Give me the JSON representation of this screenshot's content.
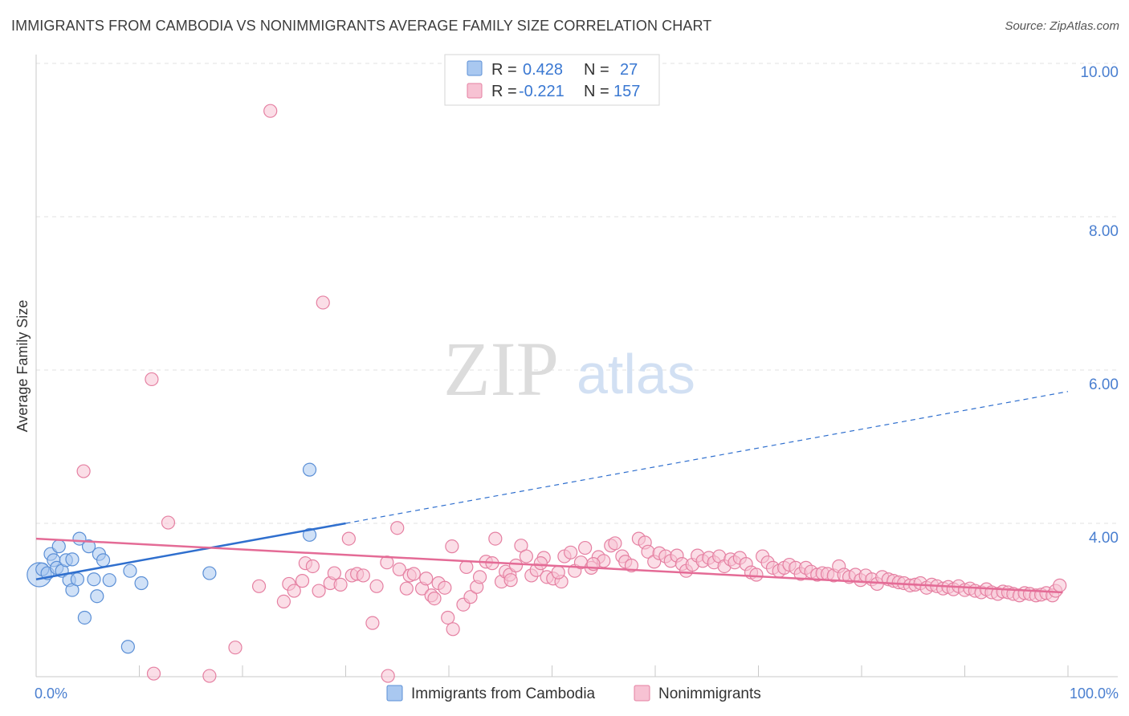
{
  "header": {
    "title": "IMMIGRANTS FROM CAMBODIA VS NONIMMIGRANTS AVERAGE FAMILY SIZE CORRELATION CHART",
    "source": "Source: ZipAtlas.com"
  },
  "watermark": {
    "zip": "ZIP",
    "atlas": "atlas"
  },
  "legend": {
    "rows": [
      {
        "r_label": "R =",
        "r_value": "0.428",
        "n_label": "N =",
        "n_value": "27",
        "color": "#a9c8f0",
        "stroke": "#5b8fd6"
      },
      {
        "r_label": "R =",
        "r_value": "-0.221",
        "n_label": "N =",
        "n_value": "157",
        "color": "#f7c2d3",
        "stroke": "#e580a2"
      }
    ]
  },
  "bottom_legend": {
    "items": [
      {
        "label": "Immigrants from Cambodia",
        "color": "#a9c8f0",
        "stroke": "#5b8fd6"
      },
      {
        "label": "Nonimmigrants",
        "color": "#f7c2d3",
        "stroke": "#e580a2"
      }
    ]
  },
  "chart_data": {
    "type": "scatter",
    "title": "IMMIGRANTS FROM CAMBODIA VS NONIMMIGRANTS AVERAGE FAMILY SIZE CORRELATION CHART",
    "xlabel": "",
    "ylabel": "Average Family Size",
    "xlim": [
      0,
      100
    ],
    "ylim": [
      1.9,
      10.2
    ],
    "x_tick_labels": [
      "0.0%",
      "100.0%"
    ],
    "y_ticks": [
      4,
      6,
      8,
      10
    ],
    "y_tick_labels": [
      "4.00",
      "6.00",
      "8.00",
      "10.00"
    ],
    "grid": true,
    "series": [
      {
        "name": "Immigrants from Cambodia",
        "color": "#a9c8f0",
        "stroke": "#5b8fd6",
        "points": [
          {
            "x": 0.3,
            "y": 3.33,
            "big": true
          },
          {
            "x": 0.6,
            "y": 3.4
          },
          {
            "x": 1.1,
            "y": 3.35
          },
          {
            "x": 1.4,
            "y": 3.6
          },
          {
            "x": 1.7,
            "y": 3.52
          },
          {
            "x": 2.0,
            "y": 3.42
          },
          {
            "x": 2.2,
            "y": 3.7
          },
          {
            "x": 2.5,
            "y": 3.38
          },
          {
            "x": 2.9,
            "y": 3.52
          },
          {
            "x": 3.2,
            "y": 3.26
          },
          {
            "x": 3.5,
            "y": 3.53
          },
          {
            "x": 3.5,
            "y": 3.13
          },
          {
            "x": 4.0,
            "y": 3.27
          },
          {
            "x": 4.2,
            "y": 3.8
          },
          {
            "x": 4.7,
            "y": 2.77
          },
          {
            "x": 5.1,
            "y": 3.7
          },
          {
            "x": 5.6,
            "y": 3.27
          },
          {
            "x": 5.9,
            "y": 3.05
          },
          {
            "x": 6.1,
            "y": 3.6
          },
          {
            "x": 6.5,
            "y": 3.52
          },
          {
            "x": 7.1,
            "y": 3.26
          },
          {
            "x": 8.9,
            "y": 2.39
          },
          {
            "x": 9.1,
            "y": 3.38
          },
          {
            "x": 10.2,
            "y": 3.22
          },
          {
            "x": 16.8,
            "y": 3.35
          },
          {
            "x": 26.5,
            "y": 4.7
          },
          {
            "x": 26.5,
            "y": 3.85
          }
        ],
        "trend": {
          "x0": 0,
          "y0": 3.27,
          "x1": 30,
          "y1": 4.0,
          "dash_to_x": 100,
          "dash_to_y": 5.72,
          "color": "#2f6fce"
        }
      },
      {
        "name": "Nonimmigrants",
        "color": "#f7c2d3",
        "stroke": "#e580a2",
        "points": [
          {
            "x": 11.2,
            "y": 5.88
          },
          {
            "x": 4.6,
            "y": 4.68
          },
          {
            "x": 12.8,
            "y": 4.01
          },
          {
            "x": 22.7,
            "y": 9.38
          },
          {
            "x": 27.8,
            "y": 6.88
          },
          {
            "x": 11.4,
            "y": 2.04
          },
          {
            "x": 16.8,
            "y": 2.01
          },
          {
            "x": 19.3,
            "y": 2.38
          },
          {
            "x": 21.6,
            "y": 3.18
          },
          {
            "x": 24.0,
            "y": 2.98
          },
          {
            "x": 24.5,
            "y": 3.21
          },
          {
            "x": 25.0,
            "y": 3.12
          },
          {
            "x": 25.8,
            "y": 3.25
          },
          {
            "x": 26.1,
            "y": 3.48
          },
          {
            "x": 26.8,
            "y": 3.44
          },
          {
            "x": 27.4,
            "y": 3.12
          },
          {
            "x": 28.5,
            "y": 3.22
          },
          {
            "x": 28.9,
            "y": 3.35
          },
          {
            "x": 29.5,
            "y": 3.2
          },
          {
            "x": 30.3,
            "y": 3.8
          },
          {
            "x": 30.6,
            "y": 3.32
          },
          {
            "x": 31.1,
            "y": 3.34
          },
          {
            "x": 31.7,
            "y": 3.32
          },
          {
            "x": 32.6,
            "y": 2.7
          },
          {
            "x": 33.0,
            "y": 3.18
          },
          {
            "x": 34.0,
            "y": 3.49
          },
          {
            "x": 34.1,
            "y": 2.01
          },
          {
            "x": 35.0,
            "y": 3.94
          },
          {
            "x": 35.2,
            "y": 3.4
          },
          {
            "x": 35.9,
            "y": 3.15
          },
          {
            "x": 36.2,
            "y": 3.32
          },
          {
            "x": 36.6,
            "y": 3.34
          },
          {
            "x": 37.4,
            "y": 3.15
          },
          {
            "x": 38.3,
            "y": 3.06
          },
          {
            "x": 38.6,
            "y": 3.02
          },
          {
            "x": 39.0,
            "y": 3.22
          },
          {
            "x": 39.6,
            "y": 3.16
          },
          {
            "x": 39.9,
            "y": 2.77
          },
          {
            "x": 40.3,
            "y": 3.7
          },
          {
            "x": 40.4,
            "y": 2.62
          },
          {
            "x": 41.4,
            "y": 2.94
          },
          {
            "x": 41.7,
            "y": 3.43
          },
          {
            "x": 42.1,
            "y": 3.04
          },
          {
            "x": 42.7,
            "y": 3.17
          },
          {
            "x": 43.6,
            "y": 3.5
          },
          {
            "x": 44.2,
            "y": 3.48
          },
          {
            "x": 44.5,
            "y": 3.8
          },
          {
            "x": 45.1,
            "y": 3.24
          },
          {
            "x": 45.5,
            "y": 3.37
          },
          {
            "x": 45.9,
            "y": 3.33
          },
          {
            "x": 46.5,
            "y": 3.45
          },
          {
            "x": 47.0,
            "y": 3.71
          },
          {
            "x": 47.5,
            "y": 3.57
          },
          {
            "x": 48.0,
            "y": 3.32
          },
          {
            "x": 48.5,
            "y": 3.39
          },
          {
            "x": 49.2,
            "y": 3.55
          },
          {
            "x": 49.5,
            "y": 3.3
          },
          {
            "x": 50.1,
            "y": 3.28
          },
          {
            "x": 50.9,
            "y": 3.24
          },
          {
            "x": 51.2,
            "y": 3.57
          },
          {
            "x": 51.8,
            "y": 3.62
          },
          {
            "x": 52.2,
            "y": 3.38
          },
          {
            "x": 52.8,
            "y": 3.49
          },
          {
            "x": 53.2,
            "y": 3.68
          },
          {
            "x": 53.8,
            "y": 3.42
          },
          {
            "x": 54.5,
            "y": 3.56
          },
          {
            "x": 55.0,
            "y": 3.51
          },
          {
            "x": 55.7,
            "y": 3.71
          },
          {
            "x": 56.1,
            "y": 3.74
          },
          {
            "x": 56.8,
            "y": 3.57
          },
          {
            "x": 57.1,
            "y": 3.5
          },
          {
            "x": 57.7,
            "y": 3.45
          },
          {
            "x": 58.4,
            "y": 3.8
          },
          {
            "x": 59.0,
            "y": 3.75
          },
          {
            "x": 59.3,
            "y": 3.63
          },
          {
            "x": 59.9,
            "y": 3.5
          },
          {
            "x": 60.4,
            "y": 3.61
          },
          {
            "x": 61.0,
            "y": 3.57
          },
          {
            "x": 61.5,
            "y": 3.51
          },
          {
            "x": 62.1,
            "y": 3.58
          },
          {
            "x": 62.6,
            "y": 3.47
          },
          {
            "x": 63.0,
            "y": 3.38
          },
          {
            "x": 63.6,
            "y": 3.46
          },
          {
            "x": 64.1,
            "y": 3.58
          },
          {
            "x": 64.6,
            "y": 3.51
          },
          {
            "x": 65.2,
            "y": 3.55
          },
          {
            "x": 65.7,
            "y": 3.49
          },
          {
            "x": 66.2,
            "y": 3.57
          },
          {
            "x": 66.7,
            "y": 3.44
          },
          {
            "x": 67.3,
            "y": 3.53
          },
          {
            "x": 67.7,
            "y": 3.49
          },
          {
            "x": 68.2,
            "y": 3.55
          },
          {
            "x": 68.8,
            "y": 3.47
          },
          {
            "x": 69.3,
            "y": 3.36
          },
          {
            "x": 69.8,
            "y": 3.33
          },
          {
            "x": 70.4,
            "y": 3.57
          },
          {
            "x": 70.9,
            "y": 3.49
          },
          {
            "x": 71.4,
            "y": 3.42
          },
          {
            "x": 72.0,
            "y": 3.38
          },
          {
            "x": 72.5,
            "y": 3.42
          },
          {
            "x": 73.0,
            "y": 3.46
          },
          {
            "x": 73.6,
            "y": 3.42
          },
          {
            "x": 74.1,
            "y": 3.34
          },
          {
            "x": 74.6,
            "y": 3.42
          },
          {
            "x": 75.1,
            "y": 3.37
          },
          {
            "x": 75.7,
            "y": 3.33
          },
          {
            "x": 76.2,
            "y": 3.35
          },
          {
            "x": 76.7,
            "y": 3.34
          },
          {
            "x": 77.3,
            "y": 3.32
          },
          {
            "x": 77.8,
            "y": 3.44
          },
          {
            "x": 78.3,
            "y": 3.33
          },
          {
            "x": 78.8,
            "y": 3.3
          },
          {
            "x": 79.4,
            "y": 3.33
          },
          {
            "x": 79.9,
            "y": 3.26
          },
          {
            "x": 80.4,
            "y": 3.32
          },
          {
            "x": 81.0,
            "y": 3.27
          },
          {
            "x": 81.5,
            "y": 3.21
          },
          {
            "x": 82.0,
            "y": 3.3
          },
          {
            "x": 82.6,
            "y": 3.27
          },
          {
            "x": 83.1,
            "y": 3.25
          },
          {
            "x": 83.6,
            "y": 3.23
          },
          {
            "x": 84.1,
            "y": 3.22
          },
          {
            "x": 84.7,
            "y": 3.19
          },
          {
            "x": 85.2,
            "y": 3.2
          },
          {
            "x": 85.7,
            "y": 3.22
          },
          {
            "x": 86.3,
            "y": 3.16
          },
          {
            "x": 86.8,
            "y": 3.2
          },
          {
            "x": 87.3,
            "y": 3.18
          },
          {
            "x": 87.9,
            "y": 3.15
          },
          {
            "x": 88.4,
            "y": 3.17
          },
          {
            "x": 88.9,
            "y": 3.14
          },
          {
            "x": 89.4,
            "y": 3.18
          },
          {
            "x": 90.0,
            "y": 3.13
          },
          {
            "x": 90.5,
            "y": 3.15
          },
          {
            "x": 91.0,
            "y": 3.12
          },
          {
            "x": 91.6,
            "y": 3.1
          },
          {
            "x": 92.1,
            "y": 3.14
          },
          {
            "x": 92.6,
            "y": 3.1
          },
          {
            "x": 93.2,
            "y": 3.08
          },
          {
            "x": 93.7,
            "y": 3.11
          },
          {
            "x": 94.2,
            "y": 3.1
          },
          {
            "x": 94.7,
            "y": 3.08
          },
          {
            "x": 95.3,
            "y": 3.06
          },
          {
            "x": 95.8,
            "y": 3.09
          },
          {
            "x": 96.3,
            "y": 3.08
          },
          {
            "x": 96.9,
            "y": 3.06
          },
          {
            "x": 97.4,
            "y": 3.07
          },
          {
            "x": 97.9,
            "y": 3.09
          },
          {
            "x": 98.5,
            "y": 3.06
          },
          {
            "x": 98.8,
            "y": 3.12
          },
          {
            "x": 99.2,
            "y": 3.19
          },
          {
            "x": 37.8,
            "y": 3.28
          },
          {
            "x": 43.0,
            "y": 3.3
          },
          {
            "x": 46.0,
            "y": 3.26
          },
          {
            "x": 48.9,
            "y": 3.48
          },
          {
            "x": 50.6,
            "y": 3.36
          },
          {
            "x": 54.0,
            "y": 3.47
          }
        ],
        "trend": {
          "x0": 0,
          "y0": 3.8,
          "x1": 99.5,
          "y1": 3.1,
          "color": "#e46b96"
        }
      }
    ]
  }
}
